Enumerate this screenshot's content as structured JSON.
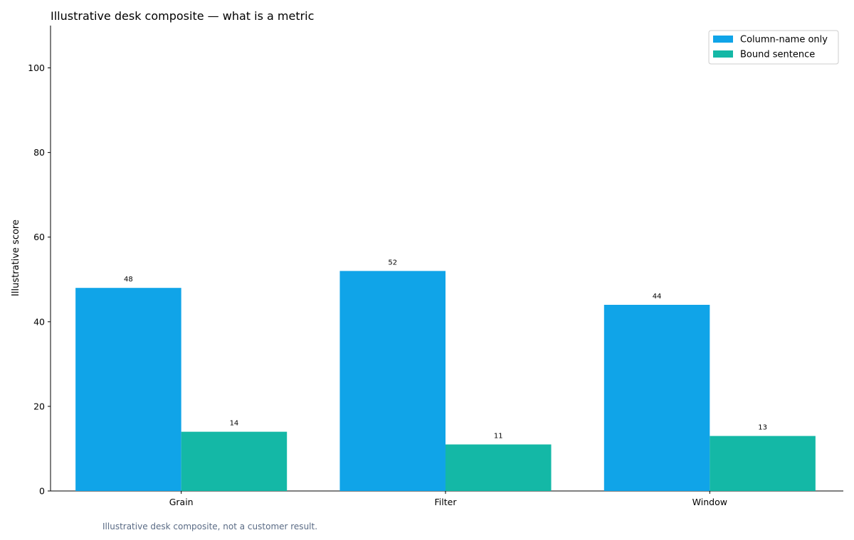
{
  "chart_data": {
    "type": "bar",
    "title": "Illustrative desk composite — what is a metric",
    "xlabel": "",
    "ylabel": "Illustrative score",
    "categories": [
      "Grain",
      "Filter",
      "Window"
    ],
    "series": [
      {
        "name": "Column-name only",
        "values": [
          48,
          52,
          44
        ],
        "color": "#10a4e8"
      },
      {
        "name": "Bound sentence",
        "values": [
          14,
          11,
          13
        ],
        "color": "#14b8a6"
      }
    ],
    "ylim": [
      0,
      110
    ],
    "yticks": [
      0,
      20,
      40,
      60,
      80,
      100
    ],
    "grid": false,
    "legend_position": "top-right",
    "data_labels": true
  },
  "footnote": "Illustrative desk composite, not a customer result."
}
